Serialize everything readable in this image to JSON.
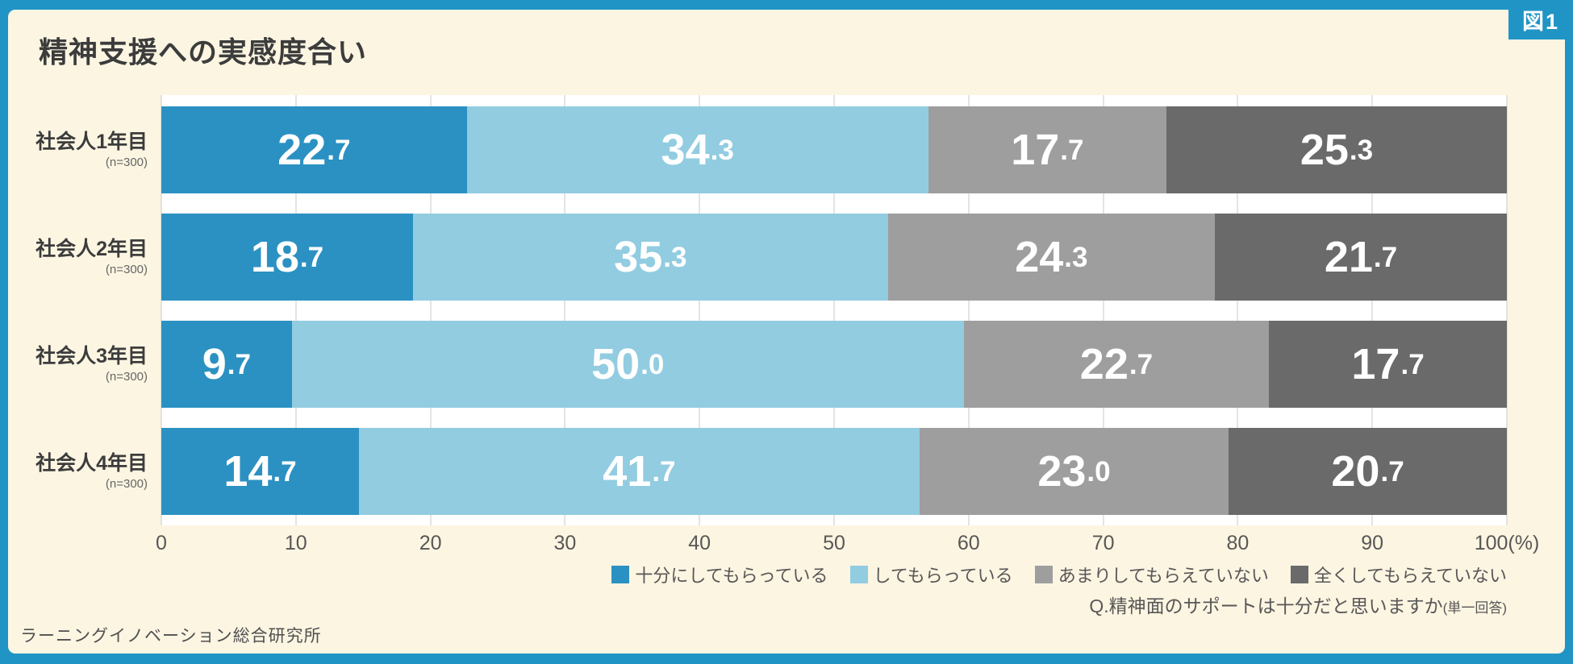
{
  "figure_label": "図1",
  "title": "精神支援への実感度合い",
  "source": "ラーニングイノベーション総合研究所",
  "question": {
    "main": "Q.精神面のサポートは十分だと思いますか",
    "suffix": "(単一回答)"
  },
  "colors": {
    "frame_blue": "#2095C5",
    "panel_cream": "#FBF5E2",
    "plot_white": "#FFFFFF",
    "gridline": "#C9C9C9",
    "series_1": "#2B91C2",
    "series_2": "#92CCE1",
    "series_3": "#9E9E9E",
    "series_4": "#6A6A6A"
  },
  "chart_data": {
    "type": "bar",
    "orientation": "horizontal",
    "stacked": true,
    "title": "精神支援への実感度合い",
    "categories": [
      {
        "label": "社会人1年目",
        "note": "(n=300)"
      },
      {
        "label": "社会人2年目",
        "note": "(n=300)"
      },
      {
        "label": "社会人3年目",
        "note": "(n=300)"
      },
      {
        "label": "社会人4年目",
        "note": "(n=300)"
      }
    ],
    "series": [
      {
        "name": "十分にしてもらっている",
        "color": "#2B91C2",
        "values": [
          22.7,
          18.7,
          9.7,
          14.7
        ]
      },
      {
        "name": "してもらっている",
        "color": "#92CCE1",
        "values": [
          34.3,
          35.3,
          50.0,
          41.7
        ]
      },
      {
        "name": "あまりしてもらえていない",
        "color": "#9E9E9E",
        "values": [
          17.7,
          24.3,
          22.7,
          23.0
        ]
      },
      {
        "name": "全くしてもらえていない",
        "color": "#6A6A6A",
        "values": [
          25.3,
          21.7,
          17.7,
          20.7
        ]
      }
    ],
    "xlim": [
      0,
      100
    ],
    "x_ticks": [
      0,
      10,
      20,
      30,
      40,
      50,
      60,
      70,
      80,
      90,
      100
    ],
    "x_unit": "(%)",
    "grid": true,
    "legend_position": "bottom-right",
    "value_format": "one_decimal"
  }
}
